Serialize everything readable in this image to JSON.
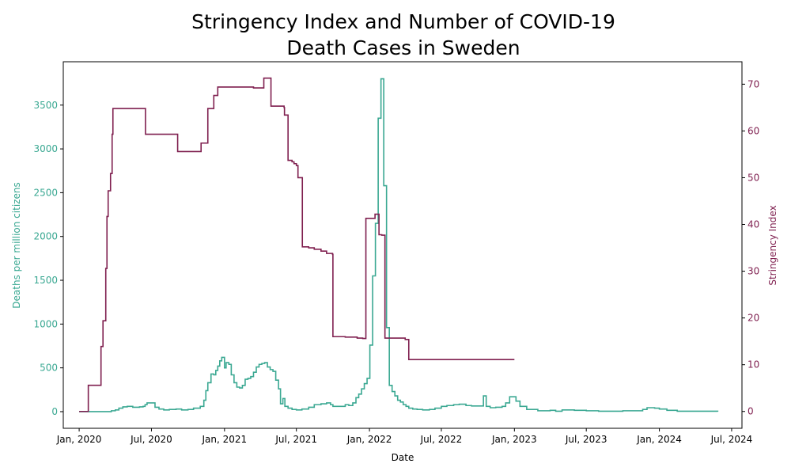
{
  "chart_data": {
    "type": "line",
    "title": [
      "Stringency Index and Number of COVID-19",
      "Death Cases in Sweden"
    ],
    "xlabel": "Date",
    "ylabel_left": "Deaths per million citizens",
    "ylabel_right": "Stringency Index",
    "x_ticks": [
      {
        "date": "2020-01-01",
        "label": "Jan, 2020"
      },
      {
        "date": "2020-07-01",
        "label": "Jul, 2020"
      },
      {
        "date": "2021-01-01",
        "label": "Jan, 2021"
      },
      {
        "date": "2021-07-01",
        "label": "Jul, 2021"
      },
      {
        "date": "2022-01-01",
        "label": "Jan, 2022"
      },
      {
        "date": "2022-07-01",
        "label": "Jul, 2022"
      },
      {
        "date": "2023-01-01",
        "label": "Jan, 2023"
      },
      {
        "date": "2023-07-01",
        "label": "Jul, 2023"
      },
      {
        "date": "2024-01-01",
        "label": "Jan, 2024"
      },
      {
        "date": "2024-07-01",
        "label": "Jul, 2024"
      }
    ],
    "xlim": [
      "2019-11-22",
      "2024-07-27"
    ],
    "ylim_left": [
      -190,
      3995
    ],
    "yticks_left": [
      0,
      500,
      1000,
      1500,
      2000,
      2500,
      3000,
      3500
    ],
    "ylim_right": [
      -3.6,
      74.8
    ],
    "yticks_right": [
      0,
      10,
      20,
      30,
      40,
      50,
      60,
      70
    ],
    "colors": {
      "deaths": "#3aa892",
      "stringency": "#7f1f4f"
    },
    "grid": false,
    "series": [
      {
        "axis": "left",
        "key": "deaths",
        "step": true,
        "points": [
          [
            "2020-01-01",
            0
          ],
          [
            "2020-03-15",
            0
          ],
          [
            "2020-03-22",
            10
          ],
          [
            "2020-04-01",
            20
          ],
          [
            "2020-04-10",
            40
          ],
          [
            "2020-04-20",
            55
          ],
          [
            "2020-05-01",
            60
          ],
          [
            "2020-05-15",
            50
          ],
          [
            "2020-06-01",
            55
          ],
          [
            "2020-06-10",
            60
          ],
          [
            "2020-06-15",
            80
          ],
          [
            "2020-06-20",
            100
          ],
          [
            "2020-07-10",
            50
          ],
          [
            "2020-07-20",
            30
          ],
          [
            "2020-08-01",
            20
          ],
          [
            "2020-08-15",
            25
          ],
          [
            "2020-09-01",
            30
          ],
          [
            "2020-09-15",
            20
          ],
          [
            "2020-10-01",
            25
          ],
          [
            "2020-10-15",
            40
          ],
          [
            "2020-11-01",
            60
          ],
          [
            "2020-11-10",
            130
          ],
          [
            "2020-11-15",
            240
          ],
          [
            "2020-11-20",
            330
          ],
          [
            "2020-11-28",
            430
          ],
          [
            "2020-12-05",
            420
          ],
          [
            "2020-12-10",
            470
          ],
          [
            "2020-12-15",
            520
          ],
          [
            "2020-12-20",
            580
          ],
          [
            "2020-12-25",
            620
          ],
          [
            "2021-01-01",
            500
          ],
          [
            "2021-01-05",
            560
          ],
          [
            "2021-01-12",
            540
          ],
          [
            "2021-01-18",
            420
          ],
          [
            "2021-01-25",
            330
          ],
          [
            "2021-02-01",
            280
          ],
          [
            "2021-02-08",
            270
          ],
          [
            "2021-02-15",
            300
          ],
          [
            "2021-02-22",
            370
          ],
          [
            "2021-03-01",
            380
          ],
          [
            "2021-03-08",
            400
          ],
          [
            "2021-03-15",
            450
          ],
          [
            "2021-03-22",
            510
          ],
          [
            "2021-03-29",
            540
          ],
          [
            "2021-04-05",
            550
          ],
          [
            "2021-04-12",
            560
          ],
          [
            "2021-04-19",
            510
          ],
          [
            "2021-04-26",
            480
          ],
          [
            "2021-05-03",
            460
          ],
          [
            "2021-05-10",
            360
          ],
          [
            "2021-05-17",
            260
          ],
          [
            "2021-05-22",
            90
          ],
          [
            "2021-05-28",
            150
          ],
          [
            "2021-06-02",
            60
          ],
          [
            "2021-06-10",
            40
          ],
          [
            "2021-06-20",
            25
          ],
          [
            "2021-07-01",
            20
          ],
          [
            "2021-07-15",
            30
          ],
          [
            "2021-08-01",
            50
          ],
          [
            "2021-08-15",
            80
          ],
          [
            "2021-09-01",
            90
          ],
          [
            "2021-09-15",
            100
          ],
          [
            "2021-09-25",
            80
          ],
          [
            "2021-10-01",
            60
          ],
          [
            "2021-10-20",
            60
          ],
          [
            "2021-11-01",
            80
          ],
          [
            "2021-11-10",
            70
          ],
          [
            "2021-11-20",
            100
          ],
          [
            "2021-11-28",
            160
          ],
          [
            "2021-12-05",
            200
          ],
          [
            "2021-12-12",
            260
          ],
          [
            "2021-12-19",
            320
          ],
          [
            "2021-12-26",
            380
          ],
          [
            "2022-01-02",
            760
          ],
          [
            "2022-01-09",
            1550
          ],
          [
            "2022-01-16",
            2150
          ],
          [
            "2022-01-23",
            3350
          ],
          [
            "2022-01-30",
            3800
          ],
          [
            "2022-02-06",
            2580
          ],
          [
            "2022-02-13",
            960
          ],
          [
            "2022-02-20",
            300
          ],
          [
            "2022-02-27",
            230
          ],
          [
            "2022-03-06",
            180
          ],
          [
            "2022-03-13",
            130
          ],
          [
            "2022-03-20",
            110
          ],
          [
            "2022-03-27",
            80
          ],
          [
            "2022-04-03",
            60
          ],
          [
            "2022-04-10",
            40
          ],
          [
            "2022-04-20",
            30
          ],
          [
            "2022-05-01",
            25
          ],
          [
            "2022-05-15",
            20
          ],
          [
            "2022-06-01",
            25
          ],
          [
            "2022-06-15",
            40
          ],
          [
            "2022-07-01",
            60
          ],
          [
            "2022-07-15",
            70
          ],
          [
            "2022-08-01",
            80
          ],
          [
            "2022-08-15",
            85
          ],
          [
            "2022-09-01",
            70
          ],
          [
            "2022-09-15",
            65
          ],
          [
            "2022-10-01",
            65
          ],
          [
            "2022-10-15",
            180
          ],
          [
            "2022-10-22",
            60
          ],
          [
            "2022-11-01",
            45
          ],
          [
            "2022-11-15",
            50
          ],
          [
            "2022-12-01",
            60
          ],
          [
            "2022-12-10",
            100
          ],
          [
            "2022-12-20",
            170
          ],
          [
            "2023-01-05",
            120
          ],
          [
            "2023-01-15",
            60
          ],
          [
            "2023-02-01",
            25
          ],
          [
            "2023-03-01",
            10
          ],
          [
            "2023-04-01",
            15
          ],
          [
            "2023-04-15",
            5
          ],
          [
            "2023-05-01",
            20
          ],
          [
            "2023-06-01",
            15
          ],
          [
            "2023-07-01",
            10
          ],
          [
            "2023-08-01",
            5
          ],
          [
            "2023-09-01",
            5
          ],
          [
            "2023-10-01",
            10
          ],
          [
            "2023-11-01",
            10
          ],
          [
            "2023-11-20",
            25
          ],
          [
            "2023-12-01",
            45
          ],
          [
            "2023-12-20",
            40
          ],
          [
            "2024-01-01",
            30
          ],
          [
            "2024-01-20",
            15
          ],
          [
            "2024-02-15",
            5
          ],
          [
            "2024-05-27",
            0
          ]
        ]
      },
      {
        "axis": "right",
        "key": "stringency",
        "step": true,
        "points": [
          [
            "2020-01-01",
            0
          ],
          [
            "2020-01-15",
            0
          ],
          [
            "2020-01-24",
            5.6
          ],
          [
            "2020-02-20",
            5.6
          ],
          [
            "2020-02-25",
            13.9
          ],
          [
            "2020-03-01",
            19.4
          ],
          [
            "2020-03-08",
            30.6
          ],
          [
            "2020-03-11",
            41.7
          ],
          [
            "2020-03-14",
            47.2
          ],
          [
            "2020-03-20",
            50.9
          ],
          [
            "2020-03-24",
            59.3
          ],
          [
            "2020-03-26",
            64.8
          ],
          [
            "2020-06-15",
            64.8
          ],
          [
            "2020-06-16",
            59.3
          ],
          [
            "2020-09-01",
            59.3
          ],
          [
            "2020-09-05",
            55.6
          ],
          [
            "2020-11-01",
            55.6
          ],
          [
            "2020-11-03",
            57.4
          ],
          [
            "2020-11-20",
            64.8
          ],
          [
            "2020-12-05",
            67.6
          ],
          [
            "2020-12-15",
            69.4
          ],
          [
            "2021-03-01",
            69.4
          ],
          [
            "2021-03-15",
            69.2
          ],
          [
            "2021-04-10",
            71.3
          ],
          [
            "2021-04-28",
            65.3
          ],
          [
            "2021-05-31",
            65.0
          ],
          [
            "2021-06-01",
            63.4
          ],
          [
            "2021-06-10",
            53.7
          ],
          [
            "2021-06-20",
            53.4
          ],
          [
            "2021-06-25",
            53.0
          ],
          [
            "2021-07-01",
            52.6
          ],
          [
            "2021-07-05",
            50.0
          ],
          [
            "2021-07-16",
            35.2
          ],
          [
            "2021-08-01",
            35.0
          ],
          [
            "2021-08-15",
            34.7
          ],
          [
            "2021-09-01",
            34.3
          ],
          [
            "2021-09-15",
            33.8
          ],
          [
            "2021-09-30",
            33.6
          ],
          [
            "2021-10-01",
            16.0
          ],
          [
            "2021-11-01",
            15.9
          ],
          [
            "2021-12-01",
            15.7
          ],
          [
            "2021-12-15",
            15.6
          ],
          [
            "2021-12-23",
            41.3
          ],
          [
            "2022-01-15",
            42.2
          ],
          [
            "2022-01-25",
            37.8
          ],
          [
            "2022-02-01",
            37.7
          ],
          [
            "2022-02-09",
            15.7
          ],
          [
            "2022-04-01",
            15.4
          ],
          [
            "2022-04-10",
            11.1
          ],
          [
            "2023-01-01",
            11.1
          ]
        ]
      }
    ]
  }
}
